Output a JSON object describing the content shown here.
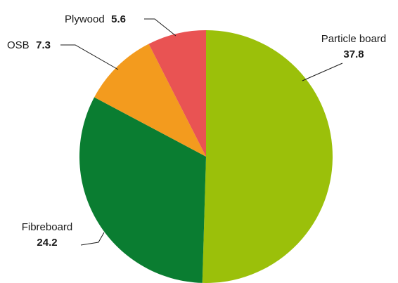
{
  "chart_data": {
    "type": "pie",
    "unit": "",
    "slices": [
      {
        "label": "Particle board",
        "value": 37.8,
        "value_text": "37.8",
        "color": "#9bc00a"
      },
      {
        "label": "Fibreboard",
        "value": 24.2,
        "value_text": "24.2",
        "color": "#0a7d31"
      },
      {
        "label": "OSB",
        "value": 7.3,
        "value_text": "7.3",
        "color": "#f39b1e"
      },
      {
        "label": "Plywood",
        "value": 5.6,
        "value_text": "5.6",
        "color": "#e95353"
      }
    ],
    "start": "12 o'clock",
    "direction": "clockwise"
  }
}
